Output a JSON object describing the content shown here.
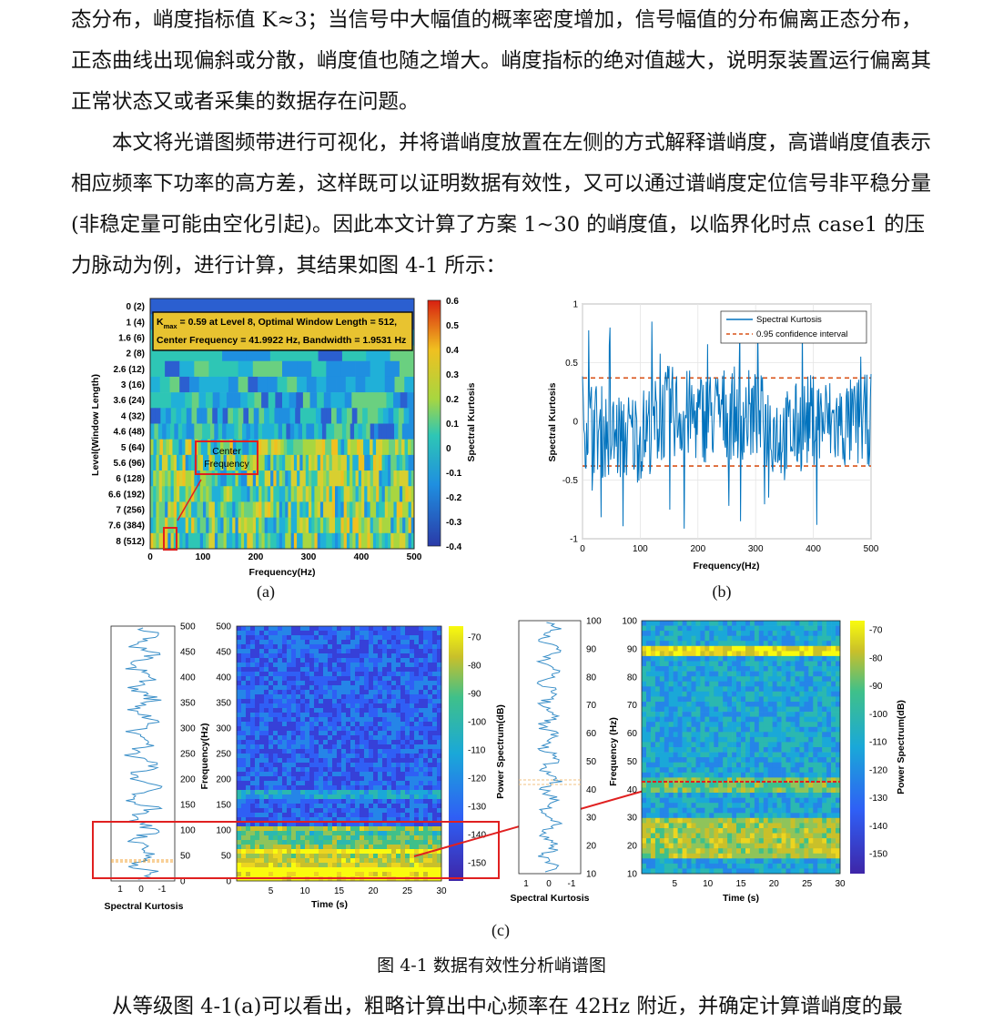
{
  "paragraphs": {
    "p1": "态分布，峭度指标值 K≈3；当信号中大幅值的概率密度增加，信号幅值的分布偏离正态分布，正态曲线出现偏斜或分散，峭度值也随之增大。峭度指标的绝对值越大，说明泵装置运行偏离其正常状态又或者采集的数据存在问题。",
    "p2": "本文将光谱图频带进行可视化，并将谱峭度放置在左侧的方式解释谱峭度，高谱峭度值表示相应频率下功率的高方差，这样既可以证明数据有效性，又可以通过谱峭度定位信号非平稳分量(非稳定量可能由空化引起)。因此本文计算了方案 1~30 的峭度值，以临界化时点 case1 的压力脉动为例，进行计算，其结果如图 4-1 所示：",
    "p3": "从等级图 4-1(a)可以看出，粗略计算出中心频率在 42Hz 附近，并确定计算谱峭度的最"
  },
  "caption": "图 4-1  数据有效性分析峭谱图",
  "panel_labels": {
    "a": "(a)",
    "b": "(b)",
    "c": "(c)"
  },
  "colors": {
    "series": "#0072BD",
    "ci": "#D95319",
    "highlight": "#e02020"
  },
  "panel_a": {
    "ylabel": "Level(Window Length)",
    "xlabel": "Frequency(Hz)",
    "levels": [
      "0 (2)",
      "1 (4)",
      "1.6 (6)",
      "2 (8)",
      "2.6 (12)",
      "3 (16)",
      "3.6 (24)",
      "4 (32)",
      "4.6 (48)",
      "5 (64)",
      "5.6 (96)",
      "6 (128)",
      "6.6 (192)",
      "7 (256)",
      "7.6 (384)",
      "8 (512)"
    ],
    "xticks": [
      "0",
      "100",
      "200",
      "300",
      "400",
      "500"
    ],
    "annotation_line1": "K",
    "annotation_sub": "max",
    "annotation_line1_rest": " = 0.59 at Level 8, Optimal Window Length = 512,",
    "annotation_line2": "Center Frequency = 41.9922 Hz, Bandwidth = 1.9531 Hz",
    "center_label": "Center Frequency",
    "colorbar_label": "Spectral Kurtosis",
    "colorbar_ticks": [
      "0.6",
      "0.5",
      "0.4",
      "0.3",
      "0.2",
      "0.1",
      "0",
      "-0.1",
      "-0.2",
      "-0.3",
      "-0.4"
    ]
  },
  "chart_data": [
    {
      "type": "line",
      "title": "",
      "xlabel": "Frequency(Hz)",
      "ylabel": "Spectral Kurtosis",
      "xlim": [
        0,
        500
      ],
      "ylim": [
        -1,
        1
      ],
      "xticks": [
        "0",
        "100",
        "200",
        "300",
        "400",
        "500"
      ],
      "yticks": [
        "1",
        "0.5",
        "0",
        "-0.5",
        "-1"
      ],
      "grid": true,
      "legend_position": "top-right",
      "series": [
        {
          "name": "Spectral Kurtosis",
          "x": [
            0,
            50,
            100,
            150,
            200,
            250,
            300,
            350,
            400,
            450,
            500
          ],
          "values": [
            0.1,
            -0.9,
            -0.8,
            0.6,
            0.2,
            0.5,
            0.3,
            -0.85,
            0.2,
            -0.3,
            0.1
          ]
        },
        {
          "name": "0.95 confidence interval",
          "x": [
            0,
            500
          ],
          "values": [
            0.37,
            0.37
          ]
        },
        {
          "name": "",
          "x": [
            0,
            500
          ],
          "values": [
            -0.38,
            -0.38
          ]
        }
      ]
    },
    {
      "type": "heatmap",
      "xlabel": "Time (s)",
      "ylabel": "Frequency(Hz)",
      "xlim": [
        0,
        30
      ],
      "ylim": [
        0,
        500
      ],
      "xticks": [
        "5",
        "10",
        "15",
        "20",
        "25",
        "30"
      ],
      "yticks": [
        "500",
        "450",
        "400",
        "350",
        "300",
        "250",
        "200",
        "150",
        "100",
        "50",
        "0"
      ],
      "colorbar_label": "Power Spectrum(dB)",
      "colorbar_ticks": [
        "-70",
        "-80",
        "-90",
        "-100",
        "-110",
        "-120",
        "-130",
        "-140",
        "-150"
      ],
      "side_xlabel": "Spectral Kurtosis",
      "side_xticks": [
        "1",
        "0",
        "-1"
      ]
    },
    {
      "type": "heatmap",
      "xlabel": "Time (s)",
      "ylabel": "Frequency (Hz)",
      "xlim": [
        0,
        30
      ],
      "ylim": [
        10,
        100
      ],
      "xticks": [
        "5",
        "10",
        "15",
        "20",
        "25",
        "30"
      ],
      "yticks": [
        "100",
        "90",
        "80",
        "70",
        "60",
        "50",
        "40",
        "30",
        "20",
        "10"
      ],
      "colorbar_label": "Power Spectrum(dB)",
      "colorbar_ticks": [
        "-70",
        "-80",
        "-90",
        "-100",
        "-110",
        "-120",
        "-130",
        "-140",
        "-150"
      ],
      "side_xlabel": "Spectral Kurtosis",
      "side_xticks": [
        "1",
        "0",
        "-1"
      ]
    }
  ]
}
